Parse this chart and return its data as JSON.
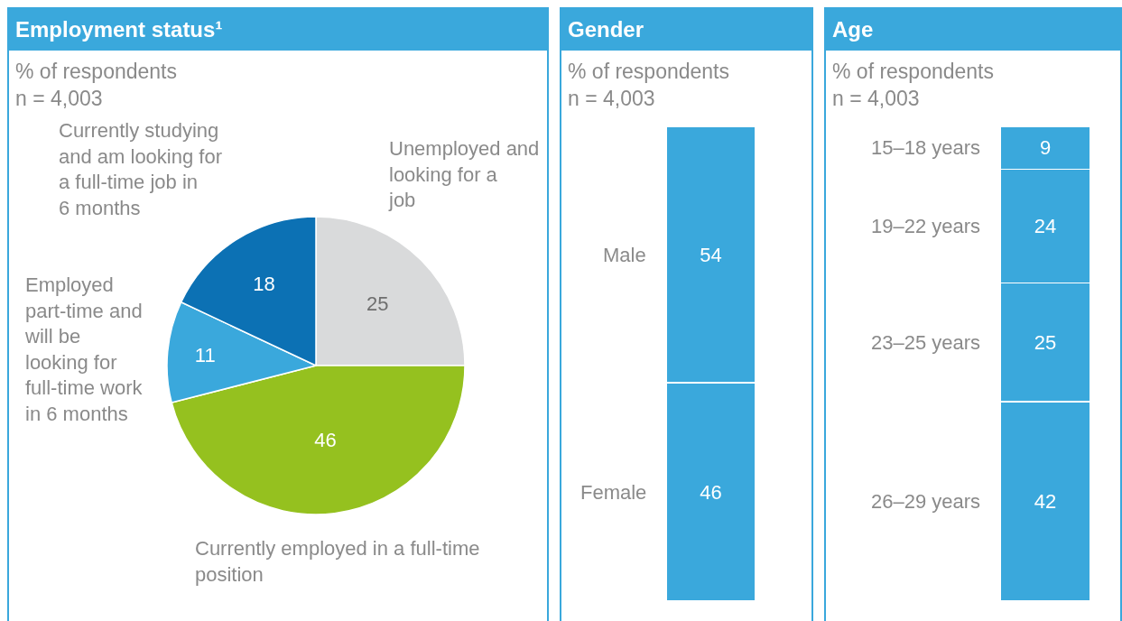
{
  "chart_data": [
    {
      "type": "pie",
      "title": "Employment status¹",
      "subtitle": "% of respondents\nn = 4,003",
      "categories": [
        "Unemployed and looking for a job",
        "Currently employed in a full-time position",
        "Employed part-time and will be looking for full-time work in 6 months",
        "Currently studying and am looking for a full-time job in 6 months"
      ],
      "values": [
        25,
        46,
        11,
        18
      ],
      "colors": [
        "#d9dadb",
        "#95c11f",
        "#3aa8dc",
        "#0c71b4"
      ],
      "data_labels": true
    },
    {
      "type": "bar",
      "stacked": true,
      "title": "Gender",
      "subtitle": "% of respondents\nn = 4,003",
      "categories": [
        null
      ],
      "data_labels": true,
      "series": [
        {
          "name": "Female",
          "color": "#3aa8dc",
          "values": [
            46
          ]
        },
        {
          "name": "Male",
          "color": "#3aa8dc",
          "values": [
            54
          ]
        }
      ]
    },
    {
      "type": "bar",
      "stacked": true,
      "title": "Age",
      "subtitle": "% of respondents\nn = 4,003",
      "categories": [
        null
      ],
      "data_labels": true,
      "series": [
        {
          "name": "26–29 years",
          "color": "#3aa8dc",
          "values": [
            42
          ]
        },
        {
          "name": "23–25 years",
          "color": "#3aa8dc",
          "values": [
            25
          ]
        },
        {
          "name": "19–22 years",
          "color": "#3aa8dc",
          "values": [
            24
          ]
        },
        {
          "name": "15–18 years",
          "color": "#3aa8dc",
          "values": [
            9
          ]
        }
      ]
    }
  ]
}
